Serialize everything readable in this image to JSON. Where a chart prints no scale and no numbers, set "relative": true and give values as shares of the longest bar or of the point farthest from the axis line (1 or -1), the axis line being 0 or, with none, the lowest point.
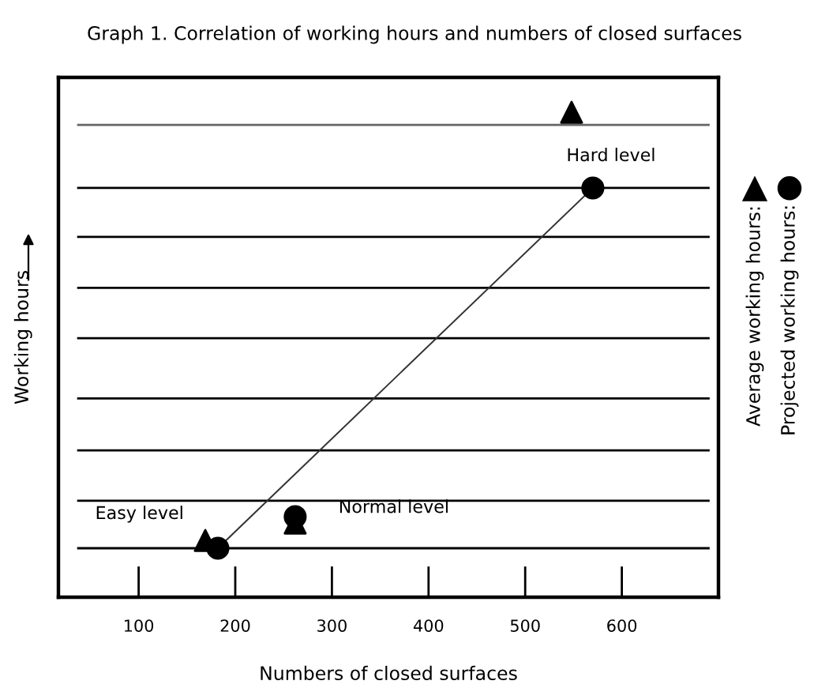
{
  "chart_data": {
    "type": "scatter",
    "title": "Graph 1. Correlation of working hours and numbers of closed surfaces",
    "xlabel": "Numbers of closed surfaces",
    "ylabel": "Working hours",
    "relative": true,
    "xlim": [
      17,
      700
    ],
    "xticks": [
      100,
      200,
      300,
      400,
      500,
      600
    ],
    "series": [
      {
        "name": "Average working hours:",
        "color": "#000000",
        "marker": "triangle",
        "x": [
          169,
          262,
          548
        ],
        "values": [
          0.117,
          0.153,
          1
        ]
      },
      {
        "name": "Projected working hours:",
        "color": "#000000",
        "marker": "circle",
        "x": [
          182,
          262,
          570
        ],
        "values": [
          0.101,
          0.166,
          0.844
        ]
      },
      {
        "type": "line",
        "color": "#333333",
        "x": [
          182,
          570
        ],
        "values": [
          0.101,
          0.844
        ],
        "line_style": "solid"
      }
    ],
    "ref_lines": [
      {
        "axis": "y",
        "value": 0.974,
        "color": "#666666"
      },
      {
        "axis": "y",
        "value": 0.844,
        "color": "#000000"
      },
      {
        "axis": "y",
        "value": 0.743,
        "color": "#000000"
      },
      {
        "axis": "y",
        "value": 0.638,
        "color": "#000000"
      },
      {
        "axis": "y",
        "value": 0.534,
        "color": "#000000"
      },
      {
        "axis": "y",
        "value": 0.41,
        "color": "#000000"
      },
      {
        "axis": "y",
        "value": 0.303,
        "color": "#000000"
      },
      {
        "axis": "y",
        "value": 0.199,
        "color": "#000000"
      },
      {
        "axis": "y",
        "value": 0.101,
        "color": "#000000"
      }
    ],
    "annotations": [
      {
        "text": "Easy level",
        "x": 169,
        "y": 0.117
      },
      {
        "text": "Normal level",
        "x": 262,
        "y": 0.166
      },
      {
        "text": "Hard level",
        "x": 548,
        "y": 1
      }
    ],
    "legend": "right"
  }
}
